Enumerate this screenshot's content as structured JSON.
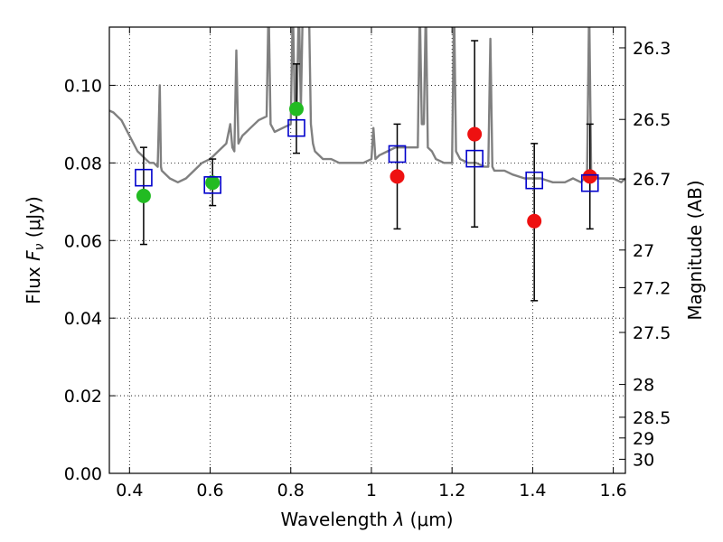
{
  "chart_data": {
    "type": "scatter",
    "xlabel": {
      "text": "Wavelength",
      "symbol": "λ",
      "unit": "μm"
    },
    "ylabel": {
      "text": "Flux",
      "symbol_main": "F",
      "symbol_sub": "ν",
      "unit": "μJy"
    },
    "ylabel_right": "Magnitude (AB)",
    "xlim": [
      0.35,
      1.63
    ],
    "ylim": [
      0.0,
      0.115
    ],
    "grid": true,
    "x_ticks": [
      {
        "value": 0.4,
        "label": "0.4"
      },
      {
        "value": 0.6,
        "label": "0.6"
      },
      {
        "value": 0.8,
        "label": "0.8"
      },
      {
        "value": 1.0,
        "label": "1"
      },
      {
        "value": 1.2,
        "label": "1.2"
      },
      {
        "value": 1.4,
        "label": "1.4"
      },
      {
        "value": 1.6,
        "label": "1.6"
      }
    ],
    "y_ticks": [
      {
        "value": 0.0,
        "label": "0.00"
      },
      {
        "value": 0.02,
        "label": "0.02"
      },
      {
        "value": 0.04,
        "label": "0.04"
      },
      {
        "value": 0.06,
        "label": "0.06"
      },
      {
        "value": 0.08,
        "label": "0.08"
      },
      {
        "value": 0.1,
        "label": "0.10"
      }
    ],
    "mag_ticks": [
      {
        "value": 26.3,
        "label": "26.3"
      },
      {
        "value": 26.5,
        "label": "26.5"
      },
      {
        "value": 26.7,
        "label": "26.7"
      },
      {
        "value": 27.0,
        "label": "27"
      },
      {
        "value": 27.2,
        "label": "27.2"
      },
      {
        "value": 27.5,
        "label": "27.5"
      },
      {
        "value": 28.0,
        "label": "28"
      },
      {
        "value": 28.5,
        "label": "28.5"
      },
      {
        "value": 29.0,
        "label": "29"
      },
      {
        "value": 30.0,
        "label": "30"
      }
    ],
    "series": [
      {
        "type": "line",
        "color": "#808080",
        "x": [
          0.35,
          0.36,
          0.37,
          0.38,
          0.39,
          0.4,
          0.41,
          0.42,
          0.43,
          0.44,
          0.45,
          0.46,
          0.47,
          0.475,
          0.478,
          0.48,
          0.49,
          0.5,
          0.52,
          0.54,
          0.56,
          0.58,
          0.6,
          0.62,
          0.64,
          0.65,
          0.655,
          0.66,
          0.665,
          0.67,
          0.675,
          0.68,
          0.69,
          0.7,
          0.72,
          0.74,
          0.745,
          0.75,
          0.755,
          0.76,
          0.78,
          0.8,
          0.805,
          0.81,
          0.815,
          0.82,
          0.825,
          0.83,
          0.835,
          0.84,
          0.845,
          0.85,
          0.855,
          0.86,
          0.88,
          0.9,
          0.92,
          0.94,
          0.96,
          0.98,
          1.0,
          1.005,
          1.01,
          1.02,
          1.04,
          1.06,
          1.08,
          1.1,
          1.115,
          1.12,
          1.125,
          1.13,
          1.135,
          1.14,
          1.15,
          1.16,
          1.18,
          1.2,
          1.205,
          1.21,
          1.215,
          1.22,
          1.24,
          1.26,
          1.28,
          1.29,
          1.295,
          1.3,
          1.305,
          1.31,
          1.33,
          1.35,
          1.38,
          1.4,
          1.42,
          1.45,
          1.48,
          1.5,
          1.52,
          1.535,
          1.54,
          1.545,
          1.55,
          1.56,
          1.58,
          1.6,
          1.62,
          1.63
        ],
        "y": [
          0.0935,
          0.093,
          0.092,
          0.091,
          0.089,
          0.087,
          0.085,
          0.083,
          0.082,
          0.081,
          0.08,
          0.08,
          0.079,
          0.1,
          0.079,
          0.078,
          0.077,
          0.076,
          0.075,
          0.076,
          0.078,
          0.08,
          0.081,
          0.083,
          0.085,
          0.09,
          0.084,
          0.083,
          0.109,
          0.085,
          0.086,
          0.087,
          0.088,
          0.089,
          0.091,
          0.092,
          0.121,
          0.09,
          0.089,
          0.088,
          0.089,
          0.09,
          0.121,
          0.094,
          0.095,
          0.121,
          0.094,
          0.121,
          0.121,
          0.121,
          0.121,
          0.09,
          0.085,
          0.083,
          0.081,
          0.081,
          0.08,
          0.08,
          0.08,
          0.08,
          0.081,
          0.089,
          0.081,
          0.082,
          0.083,
          0.084,
          0.084,
          0.084,
          0.084,
          0.121,
          0.09,
          0.09,
          0.121,
          0.084,
          0.083,
          0.081,
          0.08,
          0.08,
          0.121,
          0.083,
          0.082,
          0.081,
          0.08,
          0.08,
          0.079,
          0.079,
          0.112,
          0.079,
          0.078,
          0.078,
          0.078,
          0.077,
          0.076,
          0.076,
          0.076,
          0.075,
          0.075,
          0.076,
          0.075,
          0.077,
          0.121,
          0.078,
          0.077,
          0.076,
          0.076,
          0.076,
          0.075,
          0.076
        ]
      },
      {
        "type": "model-photometry",
        "marker": "open-square",
        "color": "#0000cc",
        "x": [
          0.435,
          0.606,
          0.814,
          1.064,
          1.256,
          1.404,
          1.542
        ],
        "y": [
          0.0762,
          0.0743,
          0.089,
          0.0823,
          0.0811,
          0.0755,
          0.0748
        ]
      },
      {
        "type": "observed-photometry",
        "marker": "filled-circle",
        "color": "#22bb22",
        "x": [
          0.435,
          0.606,
          0.814
        ],
        "y": [
          0.0715,
          0.0749,
          0.0939
        ],
        "err": [
          null,
          null,
          null
        ]
      },
      {
        "type": "observed-photometry",
        "marker": "filled-circle",
        "color": "#ee1111",
        "x": [
          1.064,
          1.256,
          1.404,
          1.542
        ],
        "y": [
          0.0765,
          0.0874,
          0.065,
          0.0765
        ],
        "err": [
          null,
          null,
          null,
          null
        ]
      }
    ],
    "error_bars": [
      {
        "x": 0.435,
        "low": 0.059,
        "high": 0.084
      },
      {
        "x": 0.606,
        "low": 0.069,
        "high": 0.081
      },
      {
        "x": 0.814,
        "low": 0.0825,
        "high": 0.1055
      },
      {
        "x": 1.064,
        "low": 0.063,
        "high": 0.09
      },
      {
        "x": 1.256,
        "low": 0.0635,
        "high": 0.1115
      },
      {
        "x": 1.404,
        "low": 0.0445,
        "high": 0.085
      },
      {
        "x": 1.542,
        "low": 0.063,
        "high": 0.09
      }
    ]
  }
}
